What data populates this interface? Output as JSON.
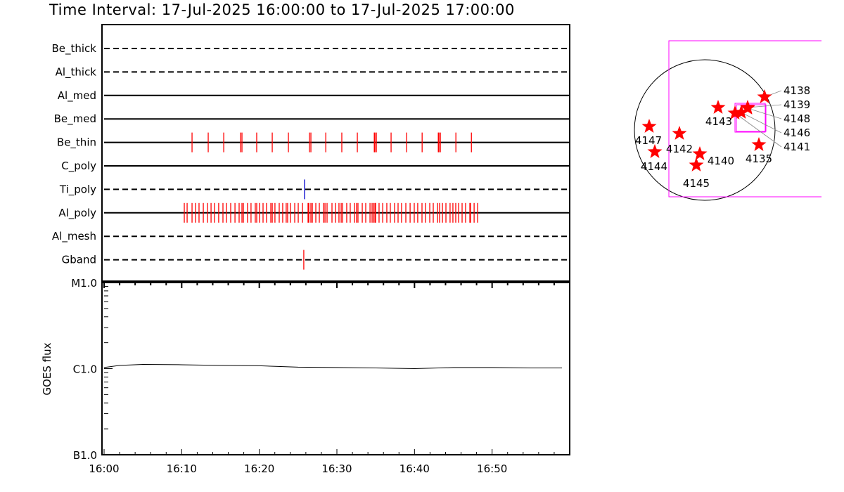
{
  "title": "Time Interval: 17-Jul-2025 16:00:00 to 17-Jul-2025 17:00:00",
  "chart_data": [
    {
      "type": "timeline",
      "xlim": [
        "16:00:00",
        "17:00:00"
      ],
      "x_tick_labels": [
        "16:00",
        "16:10",
        "16:20",
        "16:30",
        "16:40",
        "16:50"
      ],
      "lanes": [
        {
          "name": "Be_thick",
          "style": "dashed",
          "events": []
        },
        {
          "name": "Al_thick",
          "style": "dashed",
          "events": []
        },
        {
          "name": "Al_med",
          "style": "solid",
          "events": []
        },
        {
          "name": "Be_med",
          "style": "solid",
          "events": []
        },
        {
          "name": "Be_thin",
          "style": "solid",
          "color": "#ff0000",
          "events": [
            "16:11:20",
            "16:13:25",
            "16:15:25",
            "16:17:35",
            "16:17:46",
            "16:19:40",
            "16:21:40",
            "16:23:45",
            "16:26:28",
            "16:26:39",
            "16:28:34",
            "16:30:38",
            "16:32:38",
            "16:34:49",
            "16:34:54",
            "16:35:05",
            "16:36:59",
            "16:38:59",
            "16:40:59",
            "16:43:04",
            "16:43:09",
            "16:43:20",
            "16:45:20",
            "16:47:20"
          ]
        },
        {
          "name": "C_poly",
          "style": "solid",
          "events": []
        },
        {
          "name": "Ti_poly",
          "style": "dashed",
          "color": "#0000cc",
          "events": [
            "16:25:50"
          ]
        },
        {
          "name": "Al_poly",
          "style": "solid",
          "color": "#ff0000",
          "events": [
            "16:10:20",
            "16:10:42",
            "16:11:20",
            "16:11:47",
            "16:12:14",
            "16:12:47",
            "16:13:19",
            "16:13:47",
            "16:14:14",
            "16:14:46",
            "16:15:19",
            "16:15:46",
            "16:16:19",
            "16:16:52",
            "16:17:24",
            "16:17:46",
            "16:17:57",
            "16:18:29",
            "16:18:56",
            "16:19:29",
            "16:19:40",
            "16:20:02",
            "16:20:29",
            "16:20:56",
            "16:21:29",
            "16:21:40",
            "16:22:01",
            "16:22:34",
            "16:23:01",
            "16:23:28",
            "16:23:39",
            "16:24:01",
            "16:24:34",
            "16:25:01",
            "16:25:34",
            "16:26:17",
            "16:26:23",
            "16:26:39",
            "16:26:50",
            "16:27:17",
            "16:27:44",
            "16:28:17",
            "16:28:28",
            "16:28:44",
            "16:29:22",
            "16:29:49",
            "16:30:16",
            "16:30:33",
            "16:30:44",
            "16:31:16",
            "16:31:43",
            "16:32:16",
            "16:32:32",
            "16:32:43",
            "16:33:16",
            "16:33:43",
            "16:34:16",
            "16:34:32",
            "16:34:43",
            "16:34:54",
            "16:34:59",
            "16:35:26",
            "16:35:54",
            "16:36:26",
            "16:36:53",
            "16:37:26",
            "16:37:53",
            "16:38:20",
            "16:38:53",
            "16:39:26",
            "16:39:58",
            "16:40:25",
            "16:40:58",
            "16:41:25",
            "16:41:58",
            "16:42:25",
            "16:42:58",
            "16:43:14",
            "16:43:36",
            "16:44:03",
            "16:44:35",
            "16:44:57",
            "16:45:19",
            "16:45:41",
            "16:46:08",
            "16:46:35",
            "16:47:08",
            "16:47:13",
            "16:47:41",
            "16:48:08"
          ]
        },
        {
          "name": "Al_mesh",
          "style": "dashed",
          "events": []
        },
        {
          "name": "Gband",
          "style": "dashed",
          "color": "#ff0000",
          "events": [
            "16:25:44"
          ]
        }
      ]
    },
    {
      "type": "line",
      "ylabel": "GOES flux",
      "yscale": "log",
      "ylim": [
        1e-07,
        1e-05
      ],
      "y_tick_labels": [
        {
          "value": 1e-05,
          "label": "M1.0"
        },
        {
          "value": 1e-06,
          "label": "C1.0"
        },
        {
          "value": 1e-07,
          "label": "B1.0"
        }
      ],
      "xlim": [
        "16:00:00",
        "17:00:00"
      ],
      "x_tick_labels": [
        "16:00",
        "16:10",
        "16:20",
        "16:30",
        "16:40",
        "16:50"
      ],
      "series": [
        {
          "x": [
            "16:00",
            "16:02",
            "16:05",
            "16:10",
            "16:15",
            "16:20",
            "16:25",
            "16:30",
            "16:35",
            "16:40",
            "16:45",
            "16:50",
            "16:55",
            "16:59"
          ],
          "y": [
            1.03e-06,
            1.09e-06,
            1.12e-06,
            1.11e-06,
            1.09e-06,
            1.08e-06,
            1.04e-06,
            1.03e-06,
            1.02e-06,
            1e-06,
            1.03e-06,
            1.03e-06,
            1.02e-06,
            1.02e-06
          ],
          "color": "#000000"
        }
      ]
    },
    {
      "type": "scatter",
      "description_kind": "solar disk map",
      "points": [
        {
          "label": "4147"
        },
        {
          "label": "4144"
        },
        {
          "label": "4142"
        },
        {
          "label": "4140"
        },
        {
          "label": "4145"
        },
        {
          "label": "4143"
        },
        {
          "label": "4141"
        },
        {
          "label": "4146"
        },
        {
          "label": "4148"
        },
        {
          "label": "4139"
        },
        {
          "label": "4138"
        },
        {
          "label": "4135"
        }
      ],
      "marker_color": "#ff0000",
      "fov_color": "#ff00ff"
    }
  ]
}
